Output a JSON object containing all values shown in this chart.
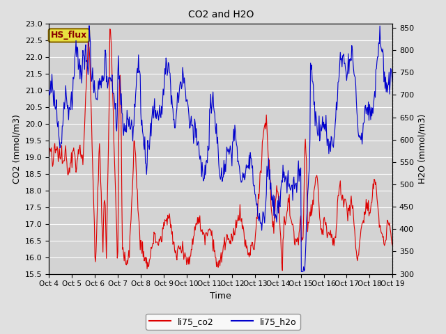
{
  "title": "CO2 and H2O",
  "xlabel": "Time",
  "ylabel_left": "CO2 (mmol/m3)",
  "ylabel_right": "H2O (mmol/m3)",
  "ylim_left": [
    15.5,
    23.0
  ],
  "ylim_right": [
    300,
    860
  ],
  "xtick_labels": [
    "Oct 4",
    "Oct 5",
    "Oct 6",
    "Oct 7",
    "Oct 8",
    "Oct 9",
    "Oct 10",
    "Oct 11",
    "Oct 12",
    "Oct 13",
    "Oct 14",
    "Oct 15",
    "Oct 16",
    "Oct 17",
    "Oct 18",
    "Oct 19"
  ],
  "legend_labels": [
    "li75_co2",
    "li75_h2o"
  ],
  "co2_color": "#dd0000",
  "h2o_color": "#0000cc",
  "background_color": "#e0e0e0",
  "plot_bg_color": "#d3d3d3",
  "annotation_text": "HS_flux",
  "annotation_bg": "#e8e040",
  "annotation_border": "#886600",
  "yticks_left": [
    15.5,
    16.0,
    16.5,
    17.0,
    17.5,
    18.0,
    18.5,
    19.0,
    19.5,
    20.0,
    20.5,
    21.0,
    21.5,
    22.0,
    22.5,
    23.0
  ],
  "yticks_right": [
    300,
    350,
    400,
    450,
    500,
    550,
    600,
    650,
    700,
    750,
    800,
    850
  ]
}
